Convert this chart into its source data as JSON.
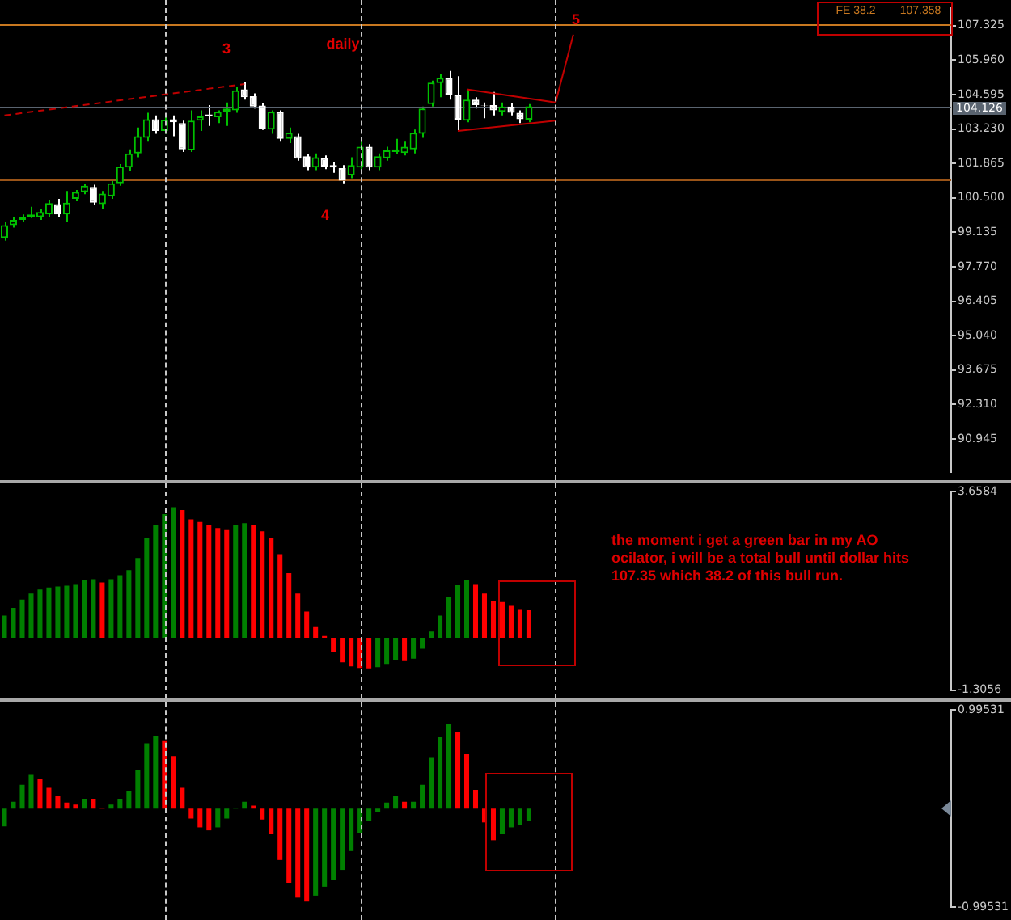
{
  "chart_data": [
    {
      "type": "candlestick",
      "categories": [
        null,
        null,
        null,
        null,
        null,
        null,
        null,
        null,
        null,
        null,
        null,
        null,
        null,
        null,
        null,
        null,
        null,
        null,
        null,
        null,
        null,
        null,
        null,
        null,
        null,
        null,
        null,
        null,
        null,
        null,
        null,
        null,
        null,
        null,
        null,
        null,
        null,
        null,
        null,
        null,
        null,
        null,
        null,
        null,
        null,
        null,
        null,
        null,
        null,
        null,
        null,
        null,
        null,
        null,
        null,
        null,
        null,
        null,
        null,
        null,
        null,
        null,
        null,
        null,
        null,
        null,
        null,
        null,
        null,
        null,
        null,
        null,
        null,
        null,
        null,
        null,
        null,
        null,
        null,
        null,
        null,
        null,
        null,
        null,
        null,
        null,
        null,
        null,
        null,
        null,
        null,
        null,
        null,
        null,
        null,
        null,
        null,
        null,
        null,
        null,
        null,
        null,
        null,
        null,
        null,
        null,
        null
      ],
      "colors": [
        "#00c000",
        "#00c000",
        "#00c000",
        "#00c000",
        "#00c000",
        "#00c000",
        "#ffffff",
        "#00c000",
        "#00c000",
        "#00c000",
        "#ffffff",
        "#00c000",
        "#00c000",
        "#00c000",
        "#00c000",
        "#00c000",
        "#00c000",
        "#ffffff",
        "#00c000",
        "#ffffff",
        "#ffffff",
        "#00c000",
        "#00c000",
        "#ffffff",
        "#00c000",
        "#00c000",
        "#00c000",
        "#ffffff",
        "#ffffff",
        "#ffffff",
        "#00c000",
        "#ffffff",
        "#00c000",
        "#ffffff",
        "#ffffff",
        "#00c000",
        "#ffffff",
        "#ffffff",
        "#ffffff",
        "#00c000",
        "#00c000",
        "#ffffff",
        "#00c000",
        "#00c000",
        "#00c000",
        "#00c000",
        "#00c000",
        "#00c000",
        "#00c000",
        "#00c000",
        "#ffffff",
        "#ffffff",
        "#00c000",
        "#ffffff",
        "#ffffff",
        "#ffffff",
        "#00c000",
        "#ffffff",
        "#ffffff",
        "#00c000",
        null,
        null,
        null,
        null,
        null,
        null,
        null,
        null,
        null,
        null,
        null,
        null,
        null,
        null,
        null,
        null,
        null,
        null,
        null,
        null,
        null,
        null,
        null,
        null,
        null,
        null,
        null,
        null,
        null,
        null,
        null,
        null,
        null,
        null,
        null,
        null,
        null,
        null,
        null,
        null,
        null,
        null,
        null,
        null,
        null,
        null,
        null
      ],
      "ohlc": [
        [
          98.91,
          99.53,
          98.8,
          99.42
        ],
        [
          99.42,
          99.74,
          99.32,
          99.63
        ],
        [
          99.63,
          99.84,
          99.53,
          99.74
        ],
        [
          99.74,
          100.15,
          99.7,
          99.84
        ],
        [
          99.74,
          100.04,
          99.63,
          99.94
        ],
        [
          99.84,
          100.4,
          99.74,
          100.29
        ],
        [
          100.25,
          100.46,
          99.74,
          99.84
        ],
        [
          99.84,
          100.77,
          99.53,
          100.31
        ],
        [
          100.46,
          100.81,
          100.36,
          100.73
        ],
        [
          100.73,
          101.06,
          100.64,
          100.98
        ],
        [
          100.93,
          101.02,
          100.23,
          100.31
        ],
        [
          100.25,
          100.77,
          100.04,
          100.67
        ],
        [
          100.56,
          101.18,
          100.46,
          101.08
        ],
        [
          101.08,
          101.84,
          100.98,
          101.74
        ],
        [
          101.7,
          102.42,
          101.55,
          102.26
        ],
        [
          102.26,
          103.29,
          102.11,
          102.94
        ],
        [
          102.88,
          103.87,
          102.73,
          103.62
        ],
        [
          103.62,
          103.77,
          103.04,
          103.15
        ],
        [
          103.15,
          103.7,
          103.04,
          103.6
        ],
        [
          103.62,
          103.77,
          102.94,
          103.5
        ],
        [
          103.46,
          103.56,
          102.32,
          102.42
        ],
        [
          102.38,
          103.97,
          102.32,
          103.56
        ],
        [
          103.56,
          103.97,
          103.15,
          103.73
        ],
        [
          103.81,
          104.18,
          103.35,
          103.73
        ],
        [
          103.7,
          103.97,
          103.46,
          103.91
        ],
        [
          103.91,
          104.28,
          103.35,
          104.04
        ],
        [
          103.97,
          104.91,
          103.87,
          104.76
        ],
        [
          104.8,
          105.11,
          104.39,
          104.49
        ],
        [
          104.53,
          104.64,
          104.04,
          104.12
        ],
        [
          104.16,
          104.24,
          103.19,
          103.25
        ],
        [
          103.21,
          103.97,
          103.04,
          103.91
        ],
        [
          103.91,
          103.97,
          102.73,
          102.84
        ],
        [
          102.84,
          103.29,
          102.67,
          103.08
        ],
        [
          102.94,
          103.04,
          101.97,
          102.05
        ],
        [
          102.15,
          102.22,
          101.6,
          101.7
        ],
        [
          101.7,
          102.26,
          101.6,
          102.11
        ],
        [
          102.07,
          102.18,
          101.64,
          101.74
        ],
        [
          101.8,
          101.91,
          101.49,
          101.7
        ],
        [
          101.68,
          101.8,
          101.08,
          101.18
        ],
        [
          101.39,
          102.11,
          101.28,
          101.8
        ],
        [
          101.7,
          102.73,
          101.6,
          102.53
        ],
        [
          102.53,
          102.63,
          101.6,
          101.7
        ],
        [
          101.7,
          102.26,
          101.6,
          102.15
        ],
        [
          102.07,
          102.53,
          101.97,
          102.38
        ],
        [
          102.32,
          102.84,
          102.22,
          102.42
        ],
        [
          102.28,
          102.73,
          102.18,
          102.53
        ],
        [
          102.42,
          103.21,
          102.26,
          103.08
        ],
        [
          103.04,
          104.12,
          102.88,
          104.04
        ],
        [
          104.22,
          105.15,
          104.12,
          105.07
        ],
        [
          105.05,
          105.42,
          104.49,
          105.26
        ],
        [
          105.26,
          105.53,
          104.39,
          104.59
        ],
        [
          104.59,
          105.32,
          103.15,
          103.6
        ],
        [
          103.56,
          104.8,
          103.5,
          104.39
        ],
        [
          104.39,
          104.49,
          104.04,
          104.18
        ],
        [
          104.18,
          104.28,
          103.66,
          104.16
        ],
        [
          104.18,
          104.7,
          103.77,
          103.97
        ],
        [
          103.91,
          104.28,
          103.77,
          104.12
        ],
        [
          104.12,
          104.24,
          103.77,
          103.87
        ],
        [
          103.87,
          103.97,
          103.46,
          103.62
        ],
        [
          103.6,
          104.22,
          103.5,
          104.126
        ],
        null,
        null,
        null,
        null,
        null,
        null,
        null,
        null,
        null,
        null,
        null,
        null,
        null,
        null,
        null,
        null,
        null,
        null,
        null,
        null,
        null,
        null,
        null,
        null,
        null,
        null,
        null,
        null,
        null,
        null,
        null,
        null,
        null,
        null,
        null,
        null,
        null,
        null,
        null,
        null,
        null,
        null,
        null,
        null,
        null,
        null,
        null
      ],
      "series": [
        {
          "type": "line",
          "color": "#c00000",
          "line_style": "dashed",
          "values": [
            103.77,
            null,
            null,
            null,
            null,
            null,
            null,
            null,
            null,
            null,
            null,
            null,
            null,
            null,
            null,
            null,
            null,
            null,
            null,
            null,
            null,
            null,
            null,
            null,
            null,
            null,
            null,
            105.01,
            null,
            null,
            null,
            null,
            null,
            null,
            null,
            null,
            null,
            null,
            null,
            null,
            null,
            null,
            null,
            null,
            null,
            null,
            null,
            null,
            null,
            null,
            null,
            null,
            null,
            null,
            null,
            null,
            null,
            null,
            null,
            null,
            null,
            null,
            null,
            null,
            null,
            null,
            null,
            null,
            null,
            null,
            null,
            null,
            null,
            null,
            null,
            null,
            null,
            null,
            null,
            null,
            null,
            null,
            null,
            null,
            null,
            null,
            null,
            null,
            null,
            null,
            null,
            null,
            null,
            null,
            null,
            null,
            null,
            null,
            null,
            null,
            null,
            null,
            null,
            null,
            null,
            null,
            null
          ]
        },
        {
          "type": "line",
          "color": "#c00000",
          "line_style": "solid",
          "values": [
            null,
            null,
            null,
            null,
            null,
            null,
            null,
            null,
            null,
            null,
            null,
            null,
            null,
            null,
            null,
            null,
            null,
            null,
            null,
            null,
            null,
            null,
            null,
            null,
            null,
            null,
            null,
            null,
            null,
            null,
            null,
            null,
            null,
            null,
            null,
            null,
            null,
            null,
            null,
            null,
            null,
            null,
            null,
            null,
            null,
            null,
            null,
            null,
            null,
            null,
            null,
            null,
            104.8,
            null,
            null,
            null,
            null,
            null,
            null,
            null,
            null,
            null,
            104.28,
            null,
            null,
            null,
            null,
            null,
            null,
            null,
            null,
            null,
            null,
            null,
            null,
            null,
            null,
            null,
            null,
            null,
            null,
            null,
            null,
            null,
            null,
            null,
            null,
            null,
            null,
            null,
            null,
            null,
            null,
            null,
            null,
            null,
            null,
            null,
            null,
            null,
            null,
            null,
            null,
            null,
            null,
            null,
            null
          ]
        },
        {
          "type": "line",
          "color": "#c00000",
          "line_style": "solid",
          "values": [
            null,
            null,
            null,
            null,
            null,
            null,
            null,
            null,
            null,
            null,
            null,
            null,
            null,
            null,
            null,
            null,
            null,
            null,
            null,
            null,
            null,
            null,
            null,
            null,
            null,
            null,
            null,
            null,
            null,
            null,
            null,
            null,
            null,
            null,
            null,
            null,
            null,
            null,
            null,
            null,
            null,
            null,
            null,
            null,
            null,
            null,
            null,
            null,
            null,
            null,
            null,
            103.15,
            null,
            null,
            null,
            null,
            null,
            null,
            null,
            null,
            null,
            null,
            103.56,
            null,
            null,
            null,
            null,
            null,
            null,
            null,
            null,
            null,
            null,
            null,
            null,
            null,
            null,
            null,
            null,
            null,
            null,
            null,
            null,
            null,
            null,
            null,
            null,
            null,
            null,
            null,
            null,
            null,
            null,
            null,
            null,
            null,
            null,
            null,
            null,
            null,
            null,
            null,
            null,
            null,
            null,
            null,
            null
          ]
        },
        {
          "type": "line",
          "color": "#c00000",
          "line_style": "solid",
          "values": [
            null,
            null,
            null,
            null,
            null,
            null,
            null,
            null,
            null,
            null,
            null,
            null,
            null,
            null,
            null,
            null,
            null,
            null,
            null,
            null,
            null,
            null,
            null,
            null,
            null,
            null,
            null,
            null,
            null,
            null,
            null,
            null,
            null,
            null,
            null,
            null,
            null,
            null,
            null,
            null,
            null,
            null,
            null,
            null,
            null,
            null,
            null,
            null,
            null,
            null,
            null,
            null,
            null,
            null,
            null,
            null,
            null,
            null,
            null,
            null,
            null,
            null,
            104.28,
            null,
            106.97,
            null,
            null,
            null,
            null,
            null,
            null,
            null,
            null,
            null,
            null,
            null,
            null,
            null,
            null,
            null,
            null,
            null,
            null,
            null,
            null,
            null,
            null,
            null,
            null,
            null,
            null,
            null,
            null,
            null,
            null,
            null,
            null,
            null,
            null,
            null,
            null,
            null,
            null,
            null,
            null,
            null,
            null
          ]
        }
      ],
      "ylim": [
        89.64,
        108.01
      ],
      "yticks": [
        107.325,
        {
          "value": 105.96,
          "label": "105.960"
        },
        104.595,
        {
          "value": 103.23,
          "label": "103.230"
        },
        101.865,
        {
          "value": 100.5,
          "label": "100.500"
        },
        99.135,
        {
          "value": 97.77,
          "label": "97.770"
        },
        96.405,
        {
          "value": 95.04,
          "label": "95.040"
        },
        93.675,
        {
          "value": 92.31,
          "label": "92.310"
        },
        90.945
      ],
      "ref_lines": [
        {
          "axis": "y",
          "value": 107.358,
          "color": "#c87820"
        },
        {
          "axis": "y",
          "value": 101.26,
          "color": "#9a5418"
        },
        {
          "axis": "y",
          "value": 104.126,
          "label": "104.126",
          "color": "#5a6470"
        }
      ],
      "annotations": [
        "3",
        "4",
        "5",
        "daily",
        "FE 38.2",
        "107.358"
      ],
      "tick_labels": "y"
    },
    {
      "type": "bar",
      "categories": [
        null,
        null,
        null,
        null,
        null,
        null,
        null,
        null,
        null,
        null,
        null,
        null,
        null,
        null,
        null,
        null,
        null,
        null,
        null,
        null,
        null,
        null,
        null,
        null,
        null,
        null,
        null,
        null,
        null,
        null,
        null,
        null,
        null,
        null,
        null,
        null,
        null,
        null,
        null,
        null,
        null,
        null,
        null,
        null,
        null,
        null,
        null,
        null,
        null,
        null,
        null,
        null,
        null,
        null,
        null,
        null,
        null,
        null,
        null,
        null,
        null,
        null,
        null,
        null,
        null,
        null,
        null,
        null,
        null,
        null,
        null,
        null,
        null,
        null,
        null,
        null,
        null,
        null,
        null,
        null,
        null,
        null,
        null,
        null,
        null,
        null,
        null,
        null,
        null,
        null,
        null,
        null,
        null,
        null,
        null,
        null,
        null,
        null,
        null,
        null,
        null,
        null,
        null,
        null,
        null,
        null,
        null
      ],
      "values": [
        0.56,
        0.75,
        0.96,
        1.11,
        1.21,
        1.26,
        1.29,
        1.31,
        1.33,
        1.44,
        1.47,
        1.39,
        1.47,
        1.57,
        1.7,
        2.0,
        2.49,
        2.82,
        3.1,
        3.27,
        3.2,
        2.97,
        2.9,
        2.82,
        2.75,
        2.72,
        2.82,
        2.87,
        2.82,
        2.67,
        2.49,
        2.1,
        1.62,
        1.11,
        0.66,
        0.29,
        0.05,
        -0.36,
        -0.61,
        -0.71,
        -0.75,
        -0.76,
        -0.73,
        -0.65,
        -0.56,
        -0.58,
        -0.52,
        -0.27,
        0.16,
        0.56,
        1.03,
        1.32,
        1.44,
        1.33,
        1.11,
        0.92,
        0.9,
        0.82,
        0.72,
        0.7,
        null,
        null,
        null,
        null,
        null,
        null,
        null,
        null,
        null,
        null,
        null,
        null,
        null,
        null,
        null,
        null,
        null,
        null,
        null,
        null,
        null,
        null,
        null,
        null,
        null,
        null,
        null,
        null,
        null,
        null,
        null,
        null,
        null,
        null,
        null,
        null,
        null,
        null,
        null,
        null,
        null,
        null,
        null,
        null,
        null,
        null,
        null
      ],
      "colors": [
        "#008000",
        "#008000",
        "#008000",
        "#008000",
        "#008000",
        "#008000",
        "#008000",
        "#008000",
        "#008000",
        "#008000",
        "#008000",
        "#ff0000",
        "#008000",
        "#008000",
        "#008000",
        "#008000",
        "#008000",
        "#008000",
        "#008000",
        "#008000",
        "#ff0000",
        "#ff0000",
        "#ff0000",
        "#ff0000",
        "#ff0000",
        "#ff0000",
        "#008000",
        "#008000",
        "#ff0000",
        "#ff0000",
        "#ff0000",
        "#ff0000",
        "#ff0000",
        "#ff0000",
        "#ff0000",
        "#ff0000",
        "#ff0000",
        "#ff0000",
        "#ff0000",
        "#ff0000",
        "#ff0000",
        "#ff0000",
        "#008000",
        "#008000",
        "#008000",
        "#ff0000",
        "#008000",
        "#008000",
        "#008000",
        "#008000",
        "#008000",
        "#008000",
        "#008000",
        "#ff0000",
        "#ff0000",
        "#ff0000",
        "#ff0000",
        "#ff0000",
        "#ff0000",
        "#ff0000",
        null,
        null,
        null,
        null,
        null,
        null,
        null,
        null,
        null,
        null,
        null,
        null,
        null,
        null,
        null,
        null,
        null,
        null,
        null,
        null,
        null,
        null,
        null,
        null,
        null,
        null,
        null,
        null,
        null,
        null,
        null,
        null,
        null,
        null,
        null,
        null,
        null,
        null,
        null,
        null,
        null,
        null,
        null,
        null,
        null,
        null,
        null
      ],
      "ylim": [
        -1.3056,
        3.6584
      ],
      "yticks": [
        3.6584,
        -1.3056
      ],
      "annotations": [
        "the moment i get a green bar in my AO ocilator, i will be a total bull until dollar hits 107.35 which 38.2 of this bull run."
      ],
      "tick_labels": "y"
    },
    {
      "type": "bar",
      "categories": [
        null,
        null,
        null,
        null,
        null,
        null,
        null,
        null,
        null,
        null,
        null,
        null,
        null,
        null,
        null,
        null,
        null,
        null,
        null,
        null,
        null,
        null,
        null,
        null,
        null,
        null,
        null,
        null,
        null,
        null,
        null,
        null,
        null,
        null,
        null,
        null,
        null,
        null,
        null,
        null,
        null,
        null,
        null,
        null,
        null,
        null,
        null,
        null,
        null,
        null,
        null,
        null,
        null,
        null,
        null,
        null,
        null,
        null,
        null,
        null,
        null,
        null,
        null,
        null,
        null,
        null,
        null,
        null,
        null,
        null,
        null,
        null,
        null,
        null,
        null,
        null,
        null,
        null,
        null,
        null,
        null,
        null,
        null,
        null,
        null,
        null,
        null,
        null,
        null,
        null,
        null,
        null,
        null,
        null,
        null,
        null,
        null,
        null,
        null,
        null,
        null,
        null,
        null,
        null,
        null,
        null,
        null
      ],
      "values": [
        -0.18,
        0.07,
        0.24,
        0.34,
        0.3,
        0.21,
        0.13,
        0.06,
        0.04,
        0.1,
        0.1,
        0.01,
        0.04,
        0.1,
        0.18,
        0.39,
        0.66,
        0.73,
        0.69,
        0.53,
        0.21,
        -0.1,
        -0.19,
        -0.22,
        -0.19,
        -0.1,
        0.01,
        0.07,
        0.03,
        -0.11,
        -0.26,
        -0.52,
        -0.75,
        -0.9,
        -0.94,
        -0.88,
        -0.79,
        -0.72,
        -0.62,
        -0.43,
        -0.25,
        -0.12,
        -0.04,
        0.06,
        0.13,
        0.07,
        0.07,
        0.24,
        0.52,
        0.72,
        0.86,
        0.77,
        0.55,
        0.19,
        -0.14,
        -0.32,
        -0.26,
        -0.19,
        -0.17,
        -0.12,
        null,
        null,
        null,
        null,
        null,
        null,
        null,
        null,
        null,
        null,
        null,
        null,
        null,
        null,
        null,
        null,
        null,
        null,
        null,
        null,
        null,
        null,
        null,
        null,
        null,
        null,
        null,
        null,
        null,
        null,
        null,
        null,
        null,
        null,
        null,
        null,
        null,
        null,
        null,
        null,
        null,
        null,
        null,
        null,
        null,
        null,
        null
      ],
      "colors": [
        "#008000",
        "#008000",
        "#008000",
        "#008000",
        "#ff0000",
        "#ff0000",
        "#ff0000",
        "#ff0000",
        "#ff0000",
        "#008000",
        "#ff0000",
        "#ff0000",
        "#008000",
        "#008000",
        "#008000",
        "#008000",
        "#008000",
        "#008000",
        "#ff0000",
        "#ff0000",
        "#ff0000",
        "#ff0000",
        "#ff0000",
        "#ff0000",
        "#008000",
        "#008000",
        "#008000",
        "#008000",
        "#ff0000",
        "#ff0000",
        "#ff0000",
        "#ff0000",
        "#ff0000",
        "#ff0000",
        "#ff0000",
        "#008000",
        "#008000",
        "#008000",
        "#008000",
        "#008000",
        "#008000",
        "#008000",
        "#008000",
        "#008000",
        "#008000",
        "#ff0000",
        "#008000",
        "#008000",
        "#008000",
        "#008000",
        "#008000",
        "#ff0000",
        "#ff0000",
        "#ff0000",
        "#ff0000",
        "#ff0000",
        "#008000",
        "#008000",
        "#008000",
        "#008000",
        null,
        null,
        null,
        null,
        null,
        null,
        null,
        null,
        null,
        null,
        null,
        null,
        null,
        null,
        null,
        null,
        null,
        null,
        null,
        null,
        null,
        null,
        null,
        null,
        null,
        null,
        null,
        null,
        null,
        null,
        null,
        null,
        null,
        null,
        null,
        null,
        null,
        null,
        null,
        null,
        null,
        null,
        null,
        null,
        null,
        null,
        null
      ],
      "ylim": [
        -0.99531,
        0.99531
      ],
      "yticks": [
        0.99531,
        -0.99531
      ],
      "tick_labels": "y"
    }
  ]
}
